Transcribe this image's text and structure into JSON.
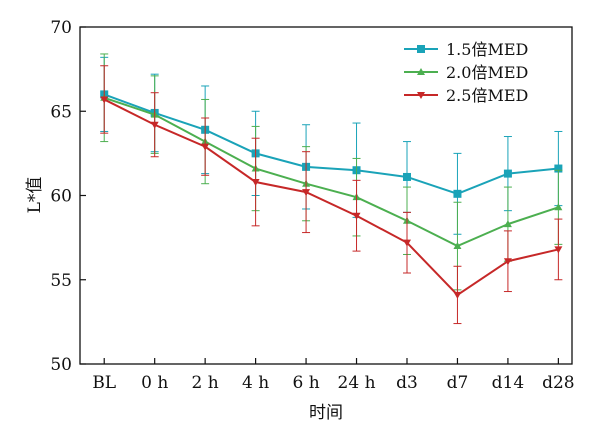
{
  "chart_data": {
    "type": "line",
    "xlabel": "时间",
    "ylabel": "L*值",
    "ylim": [
      50,
      70
    ],
    "yticks": [
      50,
      55,
      60,
      65,
      70
    ],
    "categories": [
      "BL",
      "0 h",
      "2 h",
      "4 h",
      "6 h",
      "24 h",
      "d3",
      "d7",
      "d14",
      "d28"
    ],
    "legend_position": "top-right",
    "grid": false,
    "series": [
      {
        "name": "1.5倍MED",
        "color": "#1aa3b8",
        "marker": "square",
        "values": [
          66.0,
          64.9,
          63.9,
          62.5,
          61.7,
          61.5,
          61.1,
          60.1,
          61.3,
          61.6
        ],
        "errors": [
          2.2,
          2.3,
          2.6,
          2.5,
          2.5,
          2.8,
          2.1,
          2.4,
          2.2,
          2.2
        ]
      },
      {
        "name": "2.0倍MED",
        "color": "#4caf50",
        "marker": "triangle",
        "values": [
          65.8,
          64.8,
          63.2,
          61.6,
          60.7,
          59.9,
          58.5,
          57.0,
          58.3,
          59.3
        ],
        "errors": [
          2.6,
          2.3,
          2.5,
          2.5,
          2.2,
          2.3,
          2.0,
          2.6,
          2.2,
          2.2
        ]
      },
      {
        "name": "2.5倍MED",
        "color": "#c62828",
        "marker": "triangle-down",
        "values": [
          65.7,
          64.2,
          62.9,
          60.8,
          60.2,
          58.8,
          57.2,
          54.1,
          56.1,
          56.8
        ],
        "errors": [
          2.0,
          1.9,
          1.7,
          2.6,
          2.4,
          2.1,
          1.8,
          1.7,
          1.8,
          1.8
        ]
      }
    ]
  }
}
